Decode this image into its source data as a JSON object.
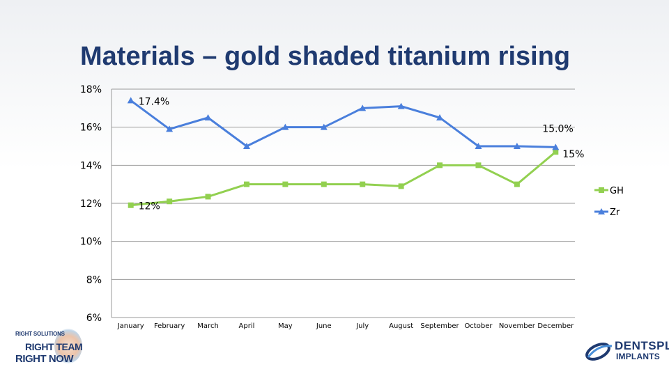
{
  "slide": {
    "title": "Materials – gold shaded titanium rising"
  },
  "chart_data": {
    "type": "line",
    "categories": [
      "January",
      "February",
      "March",
      "April",
      "May",
      "June",
      "July",
      "August",
      "September",
      "October",
      "November",
      "December"
    ],
    "y_ticks": [
      "18%",
      "16%",
      "14%",
      "12%",
      "10%",
      "8%",
      "6%"
    ],
    "ylim": [
      6,
      18
    ],
    "series": [
      {
        "name": "GH",
        "marker": "square",
        "color": "#92d050",
        "values": [
          11.9,
          12.1,
          12.35,
          13.0,
          13.0,
          13.0,
          13.0,
          12.9,
          14.0,
          14.0,
          13.0,
          14.7
        ],
        "data_labels": [
          {
            "index": 0,
            "text": "12%"
          },
          {
            "index": 11,
            "text": "15%"
          }
        ]
      },
      {
        "name": "Zr",
        "marker": "triangle",
        "color": "#4a7fdc",
        "values": [
          17.4,
          15.9,
          16.5,
          15.0,
          16.0,
          16.0,
          17.0,
          17.1,
          16.5,
          15.0,
          15.0,
          14.95
        ],
        "data_labels": [
          {
            "index": 0,
            "text": "17.4%"
          },
          {
            "index": 11,
            "text": "15.0%"
          }
        ]
      }
    ],
    "legend": "right",
    "grid": "horizontal"
  },
  "footer": {
    "left_logo": {
      "line1": "RIGHT SOLUTIONS",
      "line2": "RIGHT TEAM",
      "line3": "RIGHT NOW"
    },
    "right_logo": {
      "brand": "DENTSPLY",
      "sub": "IMPLANTS"
    }
  }
}
